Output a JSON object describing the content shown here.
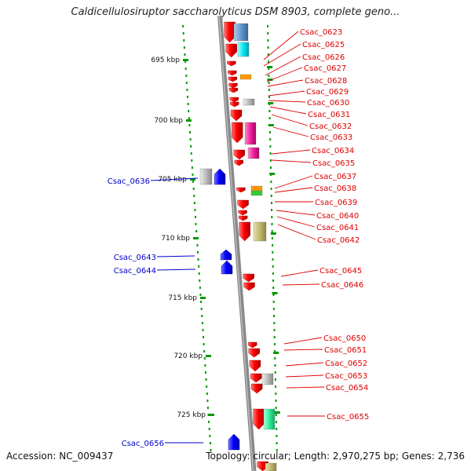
{
  "title": "Caldicellulosiruptor saccharolyticus DSM 8903, complete geno...",
  "footer": {
    "accession": "Accession: NC_009437",
    "info": "Topology: circular; Length: 2,970,275 bp; Genes: 2,736"
  },
  "scale": {
    "labels": [
      "695 kbp",
      "700 kbp",
      "705 kbp",
      "710 kbp",
      "715 kbp",
      "720 kbp",
      "725 kbp"
    ]
  },
  "right_labels": [
    "Csac_0623",
    "Csac_0625",
    "Csac_0626",
    "Csac_0627",
    "Csac_0628",
    "Csac_0629",
    "Csac_0630",
    "Csac_0631",
    "Csac_0632",
    "Csac_0633",
    "Csac_0634",
    "Csac_0635",
    "Csac_0637",
    "Csac_0638",
    "Csac_0639",
    "Csac_0640",
    "Csac_0641",
    "Csac_0642",
    "Csac_0645",
    "Csac_0646",
    "Csac_0650",
    "Csac_0651",
    "Csac_0652",
    "Csac_0653",
    "Csac_0654",
    "Csac_0655"
  ],
  "left_labels": [
    "Csac_0636",
    "Csac_0643",
    "Csac_0644",
    "Csac_0656"
  ],
  "colors": {
    "forward_gene": "#ee0000",
    "reverse_gene": "#0000ee",
    "right_label": "#dd0000",
    "left_label": "#0000cc",
    "backbone": "#888888",
    "tick": "#009900"
  }
}
